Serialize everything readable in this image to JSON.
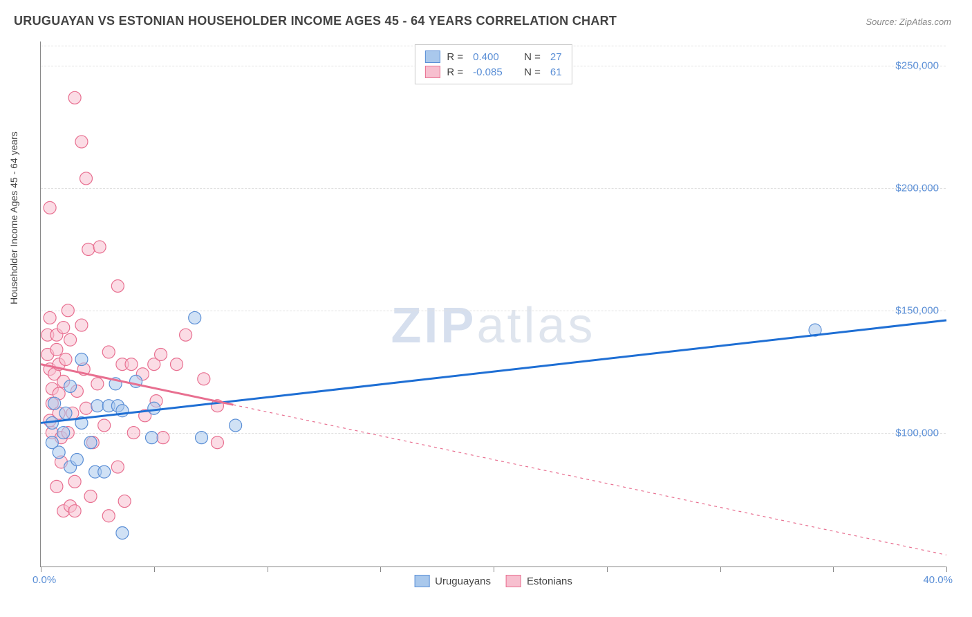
{
  "chart": {
    "type": "scatter",
    "title": "URUGUAYAN VS ESTONIAN HOUSEHOLDER INCOME AGES 45 - 64 YEARS CORRELATION CHART",
    "source": "Source: ZipAtlas.com",
    "ylabel": "Householder Income Ages 45 - 64 years",
    "watermark": "ZIPatlas",
    "watermark_zip": "ZIP",
    "watermark_atlas": "atlas",
    "background_color": "#ffffff",
    "grid_color": "#e0e0e0",
    "axis_color": "#888888",
    "title_color": "#444444",
    "title_fontsize": 18,
    "label_fontsize": 14,
    "tick_fontsize": 15,
    "tick_color": "#5b8fd6",
    "xlim": [
      0,
      40
    ],
    "ylim": [
      45000,
      260000
    ],
    "xaxis_left_label": "0.0%",
    "xaxis_right_label": "40.0%",
    "ytick_labels": [
      "$100,000",
      "$150,000",
      "$200,000",
      "$250,000"
    ],
    "ytick_values": [
      100000,
      150000,
      200000,
      250000
    ],
    "xtick_positions": [
      0,
      5,
      10,
      15,
      20,
      25,
      30,
      35,
      40
    ],
    "top_legend": {
      "rows": [
        {
          "swatch_fill": "#a9c8ec",
          "swatch_border": "#5b8fd6",
          "r_label": "R = ",
          "r_val": "0.400",
          "n_label": "N = ",
          "n_val": "27"
        },
        {
          "swatch_fill": "#f7bfcf",
          "swatch_border": "#e86f90",
          "r_label": "R = ",
          "r_val": "-0.085",
          "n_label": "N = ",
          "n_val": "61"
        }
      ]
    },
    "bottom_legend": {
      "items": [
        {
          "swatch_fill": "#a9c8ec",
          "swatch_border": "#5b8fd6",
          "label": "Uruguayans"
        },
        {
          "swatch_fill": "#f7bfcf",
          "swatch_border": "#e86f90",
          "label": "Estonians"
        }
      ]
    },
    "series": [
      {
        "name": "Uruguayans",
        "marker_fill": "#a9c8ec",
        "marker_stroke": "#5b8fd6",
        "marker_opacity": 0.55,
        "marker_radius": 9,
        "line_color": "#1f6fd4",
        "line_width": 3,
        "line_dash": "none",
        "trend": {
          "x1": 0,
          "y1": 104000,
          "x2": 40,
          "y2": 146000,
          "solid_until_x": 40
        },
        "points": [
          [
            0.5,
            96000
          ],
          [
            0.5,
            104000
          ],
          [
            0.6,
            112000
          ],
          [
            0.8,
            92000
          ],
          [
            1.0,
            100000
          ],
          [
            1.1,
            108000
          ],
          [
            1.3,
            86000
          ],
          [
            1.3,
            119000
          ],
          [
            1.6,
            89000
          ],
          [
            1.8,
            130000
          ],
          [
            1.8,
            104000
          ],
          [
            2.2,
            96000
          ],
          [
            2.4,
            84000
          ],
          [
            2.5,
            111000
          ],
          [
            2.8,
            84000
          ],
          [
            3.0,
            111000
          ],
          [
            3.3,
            120000
          ],
          [
            3.4,
            111000
          ],
          [
            3.6,
            109000
          ],
          [
            3.6,
            59000
          ],
          [
            4.2,
            121000
          ],
          [
            4.9,
            98000
          ],
          [
            5.0,
            110000
          ],
          [
            6.8,
            147000
          ],
          [
            7.1,
            98000
          ],
          [
            8.6,
            103000
          ],
          [
            34.2,
            142000
          ]
        ]
      },
      {
        "name": "Estonians",
        "marker_fill": "#f7bfcf",
        "marker_stroke": "#e86f90",
        "marker_opacity": 0.55,
        "marker_radius": 9,
        "line_color": "#e86f90",
        "line_width": 3,
        "line_dash": "4,5",
        "trend": {
          "x1": 0,
          "y1": 128000,
          "x2": 40,
          "y2": 50000,
          "solid_until_x": 8.5
        },
        "points": [
          [
            0.3,
            140000
          ],
          [
            0.3,
            132000
          ],
          [
            0.4,
            126000
          ],
          [
            0.4,
            105000
          ],
          [
            0.4,
            147000
          ],
          [
            0.4,
            192000
          ],
          [
            0.5,
            118000
          ],
          [
            0.5,
            100000
          ],
          [
            0.5,
            112000
          ],
          [
            0.6,
            124000
          ],
          [
            0.7,
            134000
          ],
          [
            0.7,
            140000
          ],
          [
            0.7,
            78000
          ],
          [
            0.8,
            116000
          ],
          [
            0.8,
            108000
          ],
          [
            0.8,
            128000
          ],
          [
            0.9,
            98000
          ],
          [
            0.9,
            88000
          ],
          [
            1.0,
            143000
          ],
          [
            1.0,
            68000
          ],
          [
            1.0,
            121000
          ],
          [
            1.1,
            130000
          ],
          [
            1.2,
            150000
          ],
          [
            1.2,
            100000
          ],
          [
            1.3,
            70000
          ],
          [
            1.3,
            138000
          ],
          [
            1.4,
            108000
          ],
          [
            1.5,
            237000
          ],
          [
            1.5,
            80000
          ],
          [
            1.5,
            68000
          ],
          [
            1.6,
            117000
          ],
          [
            1.8,
            144000
          ],
          [
            1.8,
            219000
          ],
          [
            1.9,
            126000
          ],
          [
            2.0,
            110000
          ],
          [
            2.0,
            204000
          ],
          [
            2.1,
            175000
          ],
          [
            2.2,
            74000
          ],
          [
            2.3,
            96000
          ],
          [
            2.5,
            120000
          ],
          [
            2.6,
            176000
          ],
          [
            2.8,
            103000
          ],
          [
            3.0,
            133000
          ],
          [
            3.0,
            66000
          ],
          [
            3.4,
            160000
          ],
          [
            3.4,
            86000
          ],
          [
            3.6,
            128000
          ],
          [
            3.7,
            72000
          ],
          [
            4.0,
            128000
          ],
          [
            4.1,
            100000
          ],
          [
            4.5,
            124000
          ],
          [
            4.6,
            107000
          ],
          [
            5.0,
            128000
          ],
          [
            5.1,
            113000
          ],
          [
            5.3,
            132000
          ],
          [
            5.4,
            98000
          ],
          [
            6.0,
            128000
          ],
          [
            6.4,
            140000
          ],
          [
            7.2,
            122000
          ],
          [
            7.8,
            111000
          ],
          [
            7.8,
            96000
          ]
        ]
      }
    ]
  }
}
